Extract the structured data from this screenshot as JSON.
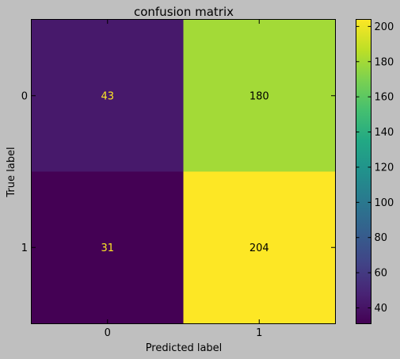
{
  "chart_data": {
    "type": "heatmap",
    "title": "confusion matrix",
    "xlabel": "Predicted label",
    "ylabel": "True label",
    "x_categories": [
      "0",
      "1"
    ],
    "y_categories": [
      "0",
      "1"
    ],
    "values": [
      [
        43,
        180
      ],
      [
        31,
        204
      ]
    ],
    "colorbar": {
      "colormap": "viridis",
      "range": [
        31,
        204
      ],
      "ticks": [
        40,
        60,
        80,
        100,
        120,
        140,
        160,
        180,
        200
      ]
    }
  }
}
